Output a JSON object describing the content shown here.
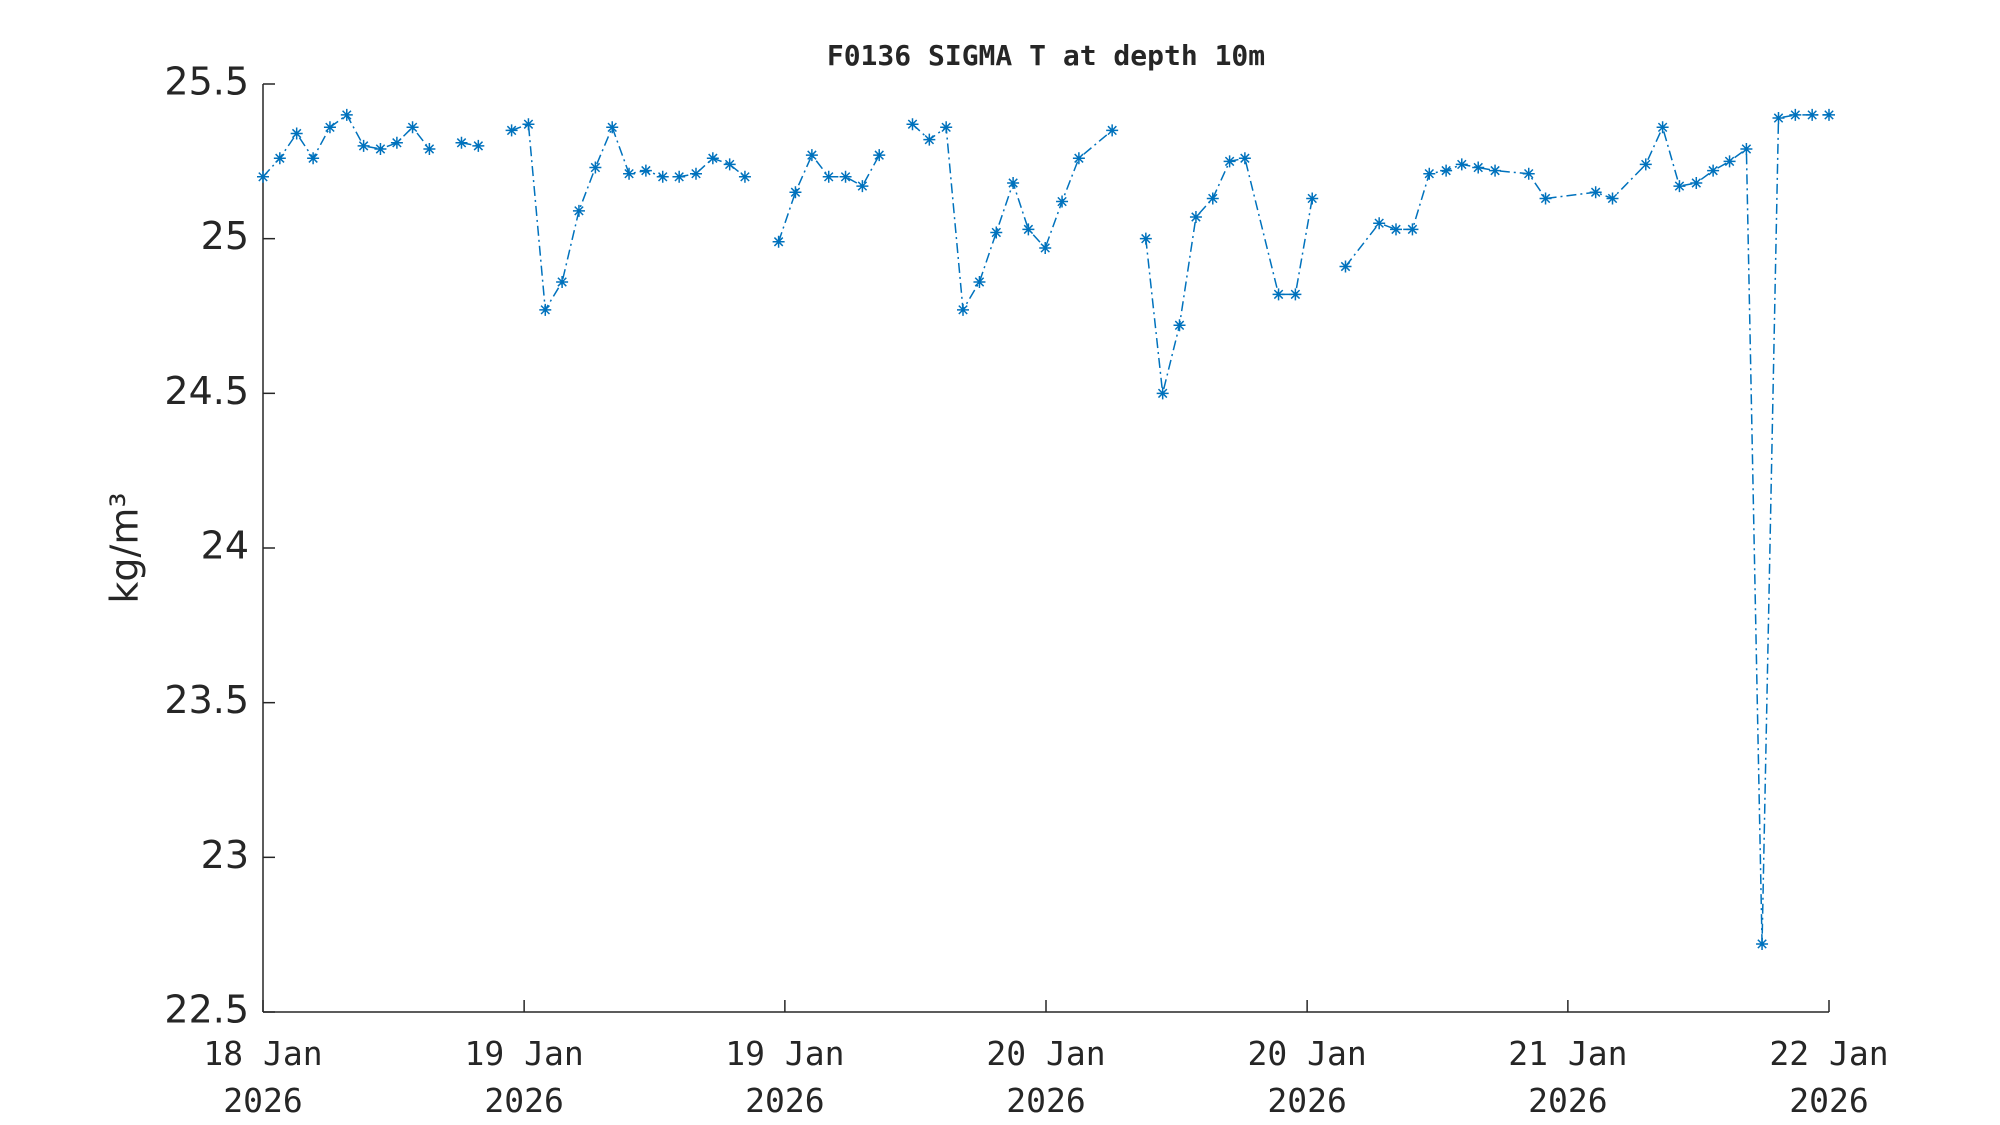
{
  "chart_data": {
    "type": "line",
    "title": "F0136 SIGMA T at depth 10m",
    "y_label": "kg/m³",
    "x": [
      18.0,
      18.043,
      18.086,
      18.128,
      18.171,
      18.214,
      18.257,
      18.3,
      18.342,
      18.382,
      18.425,
      18.467,
      18.507,
      18.55,
      18.593,
      18.635,
      18.678,
      18.721,
      18.764,
      18.807,
      18.849,
      18.892,
      18.935,
      18.978,
      19.021,
      19.063,
      19.106,
      19.149,
      19.192,
      19.231,
      19.274,
      19.317,
      19.36,
      19.402,
      19.445,
      19.488,
      19.531,
      19.574,
      19.617,
      19.659,
      19.702,
      19.745,
      19.788,
      19.83,
      19.873,
      19.916,
      19.955,
      19.998,
      20.041,
      20.084,
      20.169,
      20.212,
      20.255,
      20.298,
      20.341,
      20.383,
      20.426,
      20.469,
      20.508,
      20.594,
      20.637,
      20.68,
      20.722,
      20.765,
      20.851,
      20.894,
      20.936,
      20.979,
      21.022,
      21.062,
      21.104,
      21.147,
      21.233,
      21.276,
      21.404,
      21.447,
      21.532,
      21.575,
      21.618,
      21.661,
      21.704,
      21.746,
      21.789,
      21.829,
      21.871,
      21.914,
      21.957,
      22.0
    ],
    "series": [
      {
        "name": "SIGMA T",
        "color": "#0072bd",
        "values": [
          25.2,
          25.26,
          25.34,
          25.26,
          25.36,
          25.4,
          25.3,
          25.29,
          25.31,
          25.36,
          25.29,
          null,
          25.31,
          25.3,
          null,
          25.35,
          25.37,
          24.77,
          24.86,
          25.09,
          25.23,
          25.36,
          25.21,
          25.22,
          25.2,
          25.2,
          25.21,
          25.26,
          25.24,
          25.2,
          null,
          24.99,
          25.15,
          25.27,
          25.2,
          25.2,
          25.17,
          25.27,
          null,
          25.37,
          25.32,
          25.36,
          24.77,
          24.86,
          25.02,
          25.18,
          25.03,
          24.97,
          25.12,
          25.26,
          25.35,
          null,
          25.0,
          24.5,
          24.72,
          25.07,
          25.13,
          25.25,
          25.26,
          24.82,
          24.82,
          25.13,
          null,
          24.91,
          25.05,
          25.03,
          25.03,
          25.21,
          25.22,
          25.24,
          25.23,
          25.22,
          25.21,
          25.13,
          25.15,
          25.13,
          25.24,
          25.36,
          25.17,
          25.18,
          25.22,
          25.25,
          25.29,
          22.72,
          25.39,
          25.4,
          25.4,
          25.4
        ]
      }
    ],
    "xlim": [
      18,
      22
    ],
    "xticks": [
      {
        "value": 18,
        "label": "18 Jan\n2026"
      },
      {
        "value": 18.667,
        "label": "19 Jan\n2026"
      },
      {
        "value": 19.333,
        "label": "19 Jan\n2026"
      },
      {
        "value": 20,
        "label": "20 Jan\n2026"
      },
      {
        "value": 20.667,
        "label": "20 Jan\n2026"
      },
      {
        "value": 21.333,
        "label": "21 Jan\n2026"
      },
      {
        "value": 22,
        "label": "22 Jan\n2026"
      }
    ],
    "ylim": [
      22.5,
      25.5
    ],
    "yticks": [
      22.5,
      23,
      23.5,
      24,
      24.5,
      25,
      25.5
    ],
    "grid": false
  }
}
